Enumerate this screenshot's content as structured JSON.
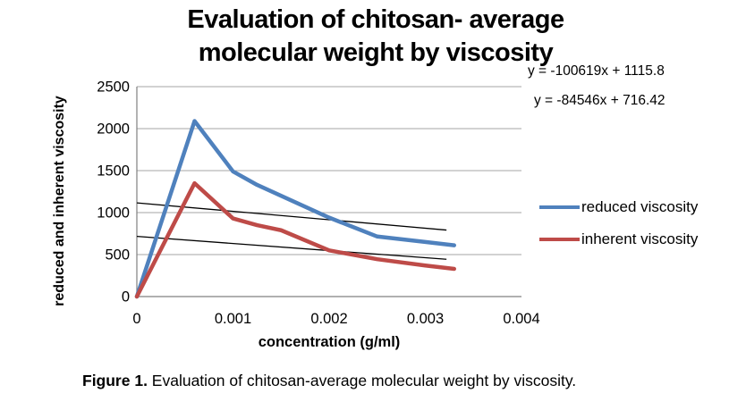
{
  "figure": {
    "title_line1": "Evaluation of chitosan- average",
    "title_line2": "molecular weight by viscosity",
    "caption_label": "Figure 1.",
    "caption_text": " Evaluation of chitosan-average molecular weight by viscosity."
  },
  "chart_data": {
    "type": "line",
    "title": "Evaluation of chitosan- average molecular weight by viscosity",
    "xlabel": "concentration (g/ml)",
    "ylabel": "reduced and inherent viscosity",
    "xlim": [
      0,
      0.004
    ],
    "ylim": [
      0,
      2500
    ],
    "xticks": [
      0,
      0.001,
      0.002,
      0.003,
      0.004
    ],
    "xtick_labels": [
      "0",
      "0.001",
      "0.002",
      "0.003",
      "0.004"
    ],
    "yticks": [
      0,
      500,
      1000,
      1500,
      2000,
      2500
    ],
    "ytick_labels": [
      "0",
      "500",
      "1000",
      "1500",
      "2000",
      "2500"
    ],
    "grid": true,
    "legend_position": "right",
    "x": [
      0,
      0.0006,
      0.001,
      0.00125,
      0.0015,
      0.002,
      0.0025,
      0.003,
      0.0033
    ],
    "series": [
      {
        "name": "reduced viscosity",
        "color": "#4F81BD",
        "values": [
          0,
          2090,
          1490,
          1330,
          1200,
          940,
          715,
          650,
          610
        ]
      },
      {
        "name": "inherent viscosity",
        "color": "#BE4B48",
        "values": [
          0,
          1350,
          930,
          850,
          790,
          550,
          445,
          370,
          330
        ]
      }
    ],
    "trendlines": [
      {
        "equation": "y = -100619x + 1115.8",
        "slope": -100619,
        "intercept": 1115.8,
        "x_range": [
          0,
          0.00322
        ],
        "color": "#000000"
      },
      {
        "equation": "y = -84546x + 716.42",
        "slope": -84546,
        "intercept": 716.42,
        "x_range": [
          0,
          0.00322
        ],
        "color": "#000000"
      }
    ],
    "colors": {
      "gridline": "#A6A6A6",
      "axis": "#808080",
      "text": "#000000"
    }
  }
}
